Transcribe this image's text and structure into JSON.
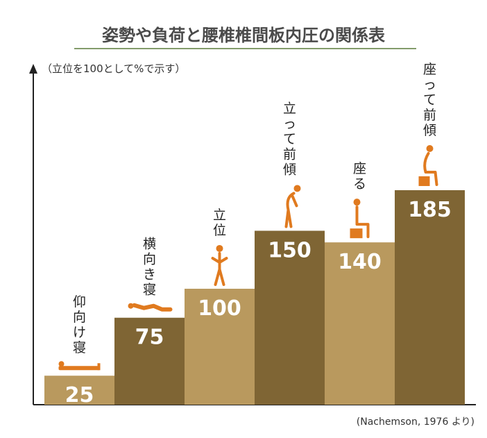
{
  "chart_data": {
    "type": "bar",
    "title": "姿勢や負荷と腰椎椎間板内圧の関係表",
    "ylabel": "（立位を100として%で示す）",
    "source": "(Nachemson, 1976 より)",
    "ylim": [
      0,
      185
    ],
    "categories": [
      "仰向け寝",
      "横向き寝",
      "立位",
      "立って前傾",
      "座る",
      "座って前傾"
    ],
    "values": [
      25,
      75,
      100,
      150,
      140,
      185
    ],
    "icons": [
      "lying-supine-icon",
      "lying-side-icon",
      "standing-icon",
      "standing-lean-icon",
      "sitting-icon",
      "sitting-lean-icon"
    ],
    "colors": {
      "light": "#b9995e",
      "dark": "#7f6534",
      "icon": "#e07a1f",
      "title": "#4a4a4a",
      "rule": "#5a7a3a"
    }
  }
}
